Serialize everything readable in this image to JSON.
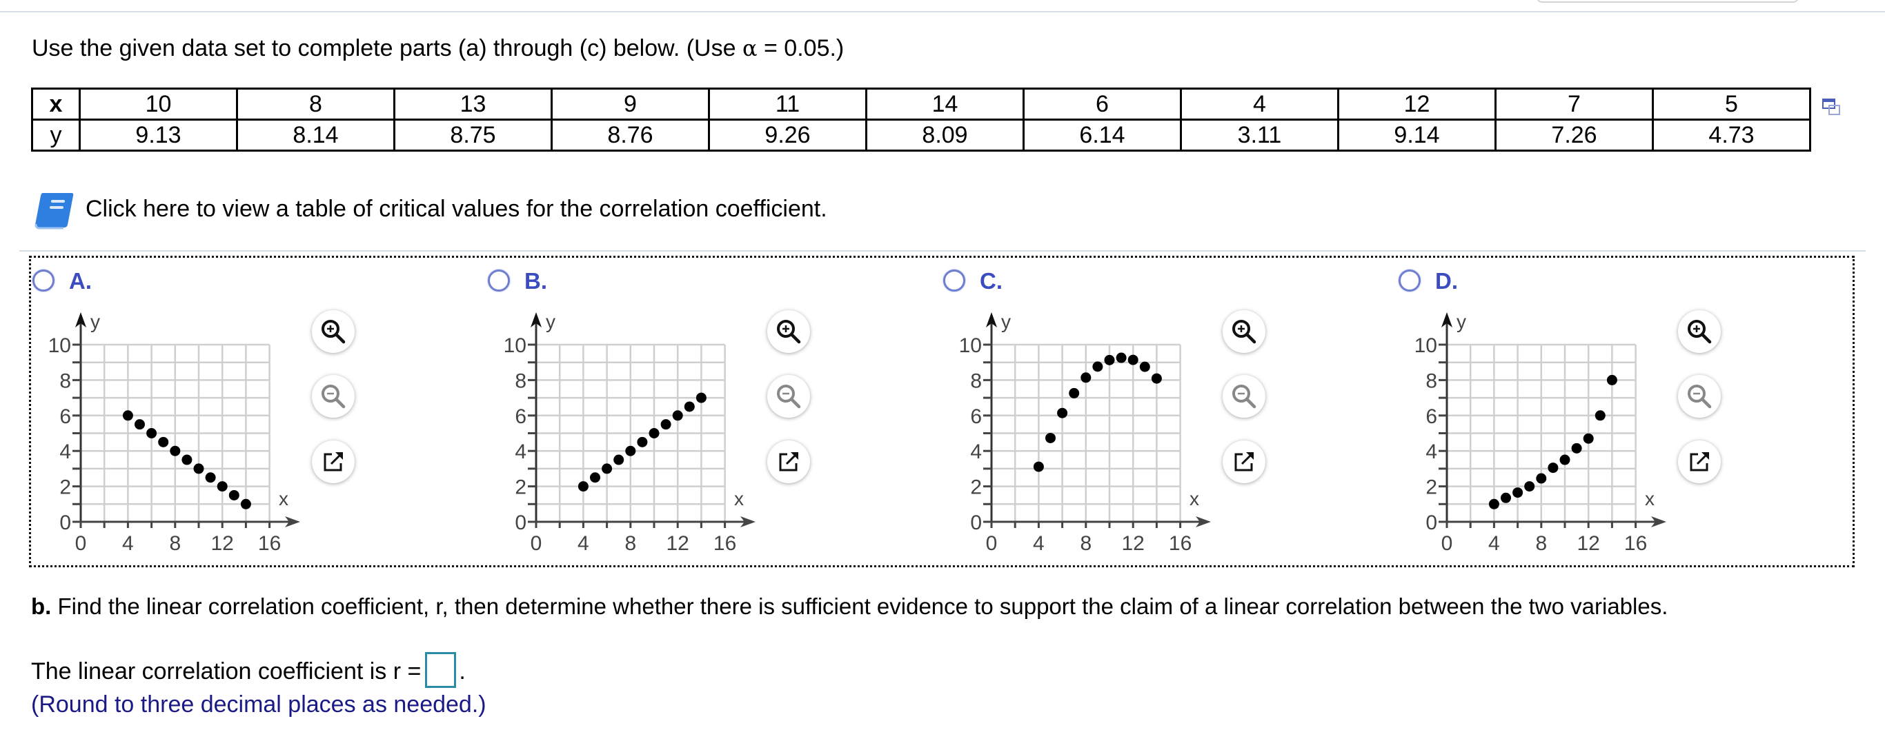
{
  "instructions": {
    "prefix": "Use the given data set to complete parts (a) through (c) below. (Use ",
    "alpha_symbol": "α",
    "suffix": " = 0.05.)"
  },
  "data_table": {
    "row_headers": [
      "x",
      "y"
    ],
    "x": [
      "10",
      "8",
      "13",
      "9",
      "11",
      "14",
      "6",
      "4",
      "12",
      "7",
      "5"
    ],
    "y": [
      "9.13",
      "8.14",
      "8.75",
      "8.76",
      "9.26",
      "8.09",
      "6.14",
      "3.11",
      "9.14",
      "7.26",
      "4.73"
    ]
  },
  "critical_values_link": "Click here to view a table of critical values for the correlation coefficient.",
  "options": [
    {
      "label": "A."
    },
    {
      "label": "B."
    },
    {
      "label": "C."
    },
    {
      "label": "D."
    }
  ],
  "graph_axes": {
    "x_label": "x",
    "y_label": "y",
    "x_ticks": [
      "0",
      "4",
      "8",
      "12",
      "16"
    ],
    "y_ticks": [
      "0",
      "2",
      "4",
      "6",
      "8",
      "10"
    ]
  },
  "tools": [
    "zoom-in",
    "zoom-out",
    "open-in-new-window"
  ],
  "part_b": {
    "letter": "b.",
    "text": " Find the linear correlation coefficient, r, then determine whether there is sufficient evidence to support the claim of a linear correlation between the two variables.",
    "answer_prefix": "The linear correlation coefficient is r =",
    "answer_value": "",
    "answer_suffix": ".",
    "round_note": "(Round to three decimal places as needed.)"
  },
  "colors": {
    "option_label": "#3b4cc0",
    "radio_border": "#6f7fd0",
    "link_icon": "#2f7fe0",
    "input_border": "#2a8ba9",
    "note_text": "#1a1a86"
  },
  "chart_data": [
    {
      "type": "scatter",
      "title": "Option A",
      "xlabel": "x",
      "ylabel": "y",
      "xlim": [
        0,
        16
      ],
      "ylim": [
        0,
        10
      ],
      "grid": true,
      "x": [
        4,
        5,
        6,
        7,
        8,
        9,
        10,
        11,
        12,
        13,
        14
      ],
      "y": [
        6,
        5.5,
        5,
        4.5,
        4,
        3.5,
        3,
        2.5,
        2,
        1.5,
        1
      ]
    },
    {
      "type": "scatter",
      "title": "Option B",
      "xlabel": "x",
      "ylabel": "y",
      "xlim": [
        0,
        16
      ],
      "ylim": [
        0,
        10
      ],
      "grid": true,
      "x": [
        4,
        5,
        6,
        7,
        8,
        9,
        10,
        11,
        12,
        13,
        14
      ],
      "y": [
        2,
        2.5,
        3,
        3.5,
        4,
        4.5,
        5,
        5.5,
        6,
        6.5,
        7
      ]
    },
    {
      "type": "scatter",
      "title": "Option C",
      "xlabel": "x",
      "ylabel": "y",
      "xlim": [
        0,
        16
      ],
      "ylim": [
        0,
        10
      ],
      "grid": true,
      "x": [
        4,
        5,
        6,
        7,
        8,
        9,
        10,
        11,
        12,
        13,
        14
      ],
      "y": [
        3.11,
        4.73,
        6.14,
        7.26,
        8.14,
        8.76,
        9.13,
        9.26,
        9.14,
        8.75,
        8.09
      ]
    },
    {
      "type": "scatter",
      "title": "Option D",
      "xlabel": "x",
      "ylabel": "y",
      "xlim": [
        0,
        16
      ],
      "ylim": [
        0,
        10
      ],
      "grid": true,
      "x": [
        4,
        5,
        6,
        7,
        8,
        9,
        10,
        11,
        12,
        13,
        14
      ],
      "y": [
        1,
        1.35,
        1.65,
        2,
        2.45,
        3.05,
        3.5,
        4.15,
        4.7,
        6,
        8
      ]
    }
  ]
}
